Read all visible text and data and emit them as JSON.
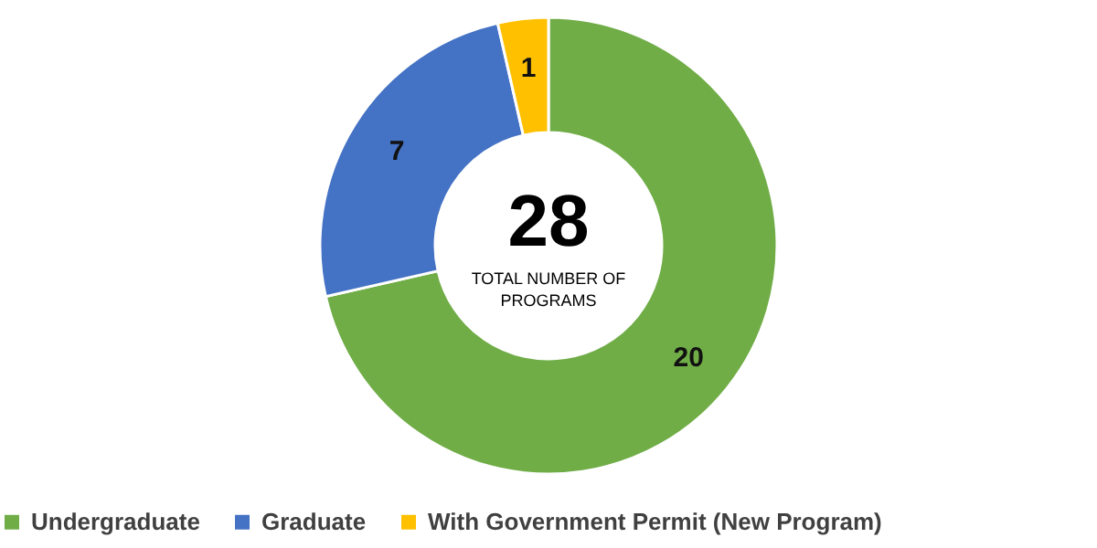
{
  "chart_data": {
    "type": "donut",
    "categories": [
      "Undergraduate",
      "Graduate",
      "With Government Permit (New Program)"
    ],
    "values": [
      20,
      7,
      1
    ],
    "colors": [
      "#70ad47",
      "#4472c4",
      "#ffc000"
    ],
    "data_labels": true,
    "legend": "bottom",
    "annotations": [
      "28",
      "TOTAL NUMBER OF",
      "PROGRAMS"
    ]
  }
}
